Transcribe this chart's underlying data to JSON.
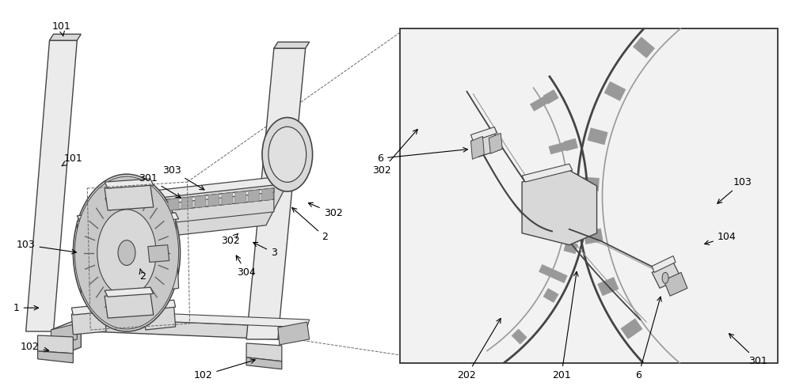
{
  "fig_width": 10.0,
  "fig_height": 4.88,
  "bg_color": "#ffffff",
  "lc": "#444444",
  "llc": "#999999",
  "flc": "#bbbbbb",
  "fill_light": "#ebebeb",
  "fill_mid": "#d8d8d8",
  "fill_dark": "#c0c0c0",
  "detail_bg": "#f0f0f0"
}
